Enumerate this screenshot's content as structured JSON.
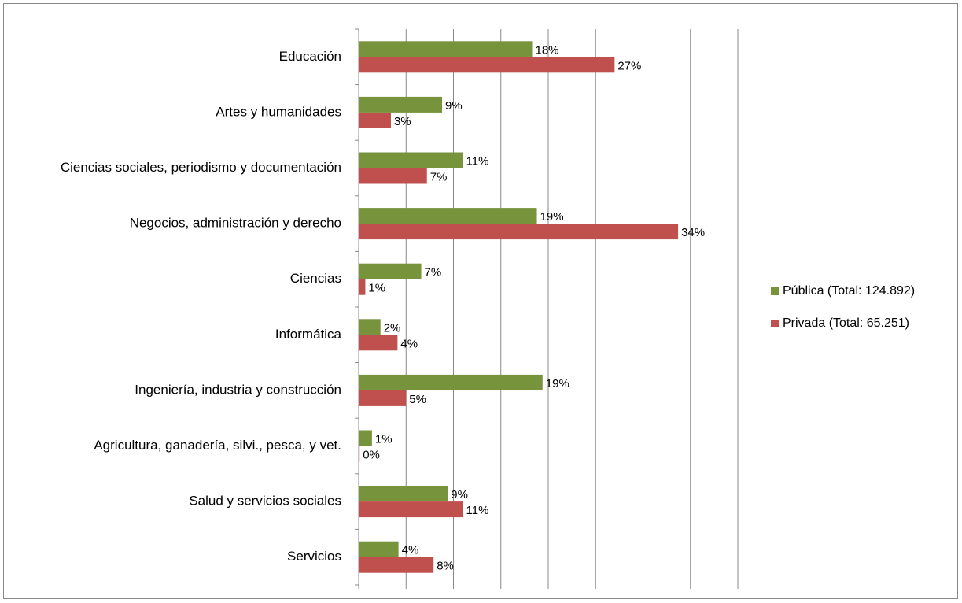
{
  "chart_data": {
    "type": "barh",
    "categories": [
      "Educación",
      "Artes y humanidades",
      "Ciencias sociales, periodismo y documentación",
      "Negocios, administración y derecho",
      "Ciencias",
      "Informática",
      "Ingeniería, industria y construcción",
      "Agricultura, ganadería,  silvi., pesca, y vet.",
      "Salud y servicios sociales",
      "Servicios"
    ],
    "series": [
      {
        "name": "Pública (Total: 124.892)",
        "color": "#77933c",
        "values": [
          18.3,
          8.8,
          11.0,
          18.8,
          6.6,
          2.3,
          19.4,
          1.4,
          9.4,
          4.2
        ],
        "value_labels": [
          "18%",
          "9%",
          "11%",
          "19%",
          "7%",
          "2%",
          "19%",
          "1%",
          "9%",
          "4%"
        ]
      },
      {
        "name": "Privada (Total: 65.251)",
        "color": "#c0504d",
        "values": [
          27.0,
          3.4,
          7.2,
          33.7,
          0.7,
          4.1,
          5.0,
          0.1,
          11.0,
          7.9
        ],
        "value_labels": [
          "27%",
          "3%",
          "7%",
          "34%",
          "1%",
          "4%",
          "5%",
          "0%",
          "11%",
          "8%"
        ]
      }
    ],
    "xlim": [
      0,
      40
    ],
    "xticks": [
      0,
      5,
      10,
      15,
      20,
      25,
      30,
      35,
      40
    ],
    "grid": true,
    "legend": "right"
  }
}
